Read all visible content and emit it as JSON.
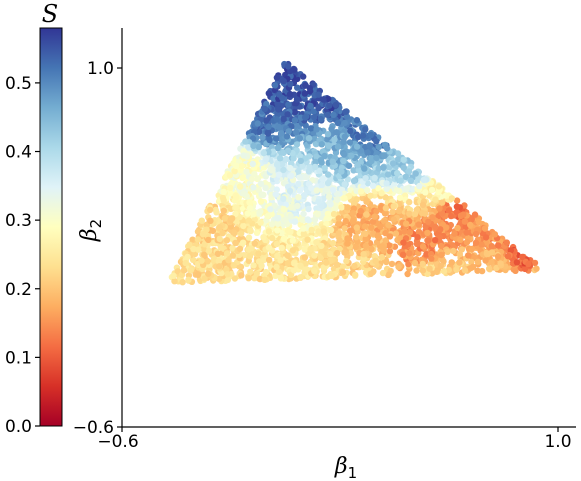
{
  "chart_data": {
    "type": "scatter",
    "title": "",
    "xlabel": "β",
    "xlabel_sub": "1",
    "ylabel": "β",
    "ylabel_sub": "2",
    "xlim": [
      -0.6,
      1.0
    ],
    "ylim": [
      -0.6,
      1.0
    ],
    "xticks": [
      {
        "value": -0.6,
        "label": "−0.6"
      },
      {
        "value": 1.0,
        "label": "1.0"
      }
    ],
    "yticks": [
      {
        "value": -0.6,
        "label": "−0.6"
      },
      {
        "value": 1.0,
        "label": "1.0"
      }
    ],
    "grid": false,
    "region": {
      "shape": "triangle",
      "vertices": [
        [
          -0.0,
          1.03
        ],
        [
          0.95,
          0.1
        ],
        [
          -0.43,
          0.04
        ]
      ]
    },
    "color_value_name": "S",
    "point_count": 3200,
    "series": [
      {
        "x": [
          -0.0,
          0.15,
          0.32,
          0.46,
          0.6,
          0.74,
          0.88,
          0.95,
          0.78,
          0.55,
          0.3,
          0.05,
          -0.15,
          -0.3,
          -0.43,
          -0.32,
          -0.2,
          -0.1,
          0.1,
          0.3,
          0.5,
          0.62,
          0.2,
          -0.05
        ],
        "y": [
          1.03,
          0.88,
          0.72,
          0.58,
          0.44,
          0.3,
          0.16,
          0.1,
          0.1,
          0.09,
          0.07,
          0.06,
          0.05,
          0.04,
          0.04,
          0.3,
          0.55,
          0.78,
          0.45,
          0.32,
          0.2,
          0.38,
          0.6,
          0.9
        ],
        "s": [
          0.56,
          0.55,
          0.52,
          0.42,
          0.28,
          0.15,
          0.1,
          0.2,
          0.2,
          0.22,
          0.22,
          0.24,
          0.23,
          0.23,
          0.24,
          0.22,
          0.3,
          0.52,
          0.34,
          0.18,
          0.14,
          0.12,
          0.45,
          0.55
        ]
      }
    ],
    "colorbar": {
      "title": "S",
      "range": [
        0.0,
        0.58
      ],
      "ticks": [
        {
          "value": 0.0,
          "label": "0.0"
        },
        {
          "value": 0.1,
          "label": "0.1"
        },
        {
          "value": 0.2,
          "label": "0.2"
        },
        {
          "value": 0.3,
          "label": "0.3"
        },
        {
          "value": 0.4,
          "label": "0.4"
        },
        {
          "value": 0.5,
          "label": "0.5"
        }
      ],
      "colormap": "RdYlBu",
      "stops": [
        "#a50026",
        "#d73027",
        "#f46d43",
        "#fdae61",
        "#fee090",
        "#ffffbf",
        "#e0f3f8",
        "#abd9e9",
        "#74add1",
        "#4575b4",
        "#313695"
      ]
    }
  }
}
